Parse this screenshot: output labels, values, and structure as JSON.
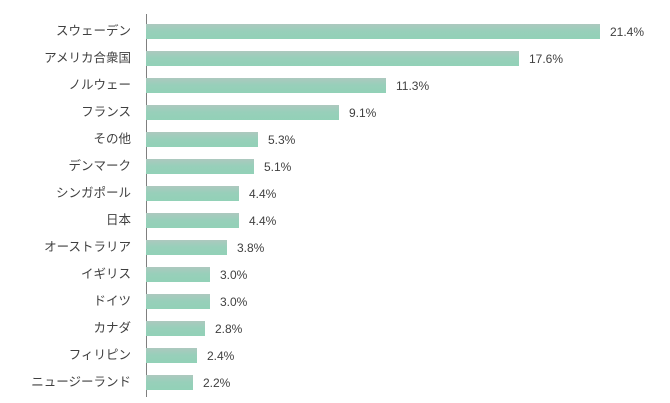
{
  "chart_data": {
    "type": "bar",
    "orientation": "horizontal",
    "title": "",
    "xlabel": "",
    "ylabel": "",
    "categories": [
      "スウェーデン",
      "アメリカ合衆国",
      "ノルウェー",
      "フランス",
      "その他",
      "デンマーク",
      "シンガポール",
      "日本",
      "オーストラリア",
      "イギリス",
      "ドイツ",
      "カナダ",
      "フィリピン",
      "ニュージーランド"
    ],
    "values": [
      21.4,
      17.6,
      11.3,
      9.1,
      5.3,
      5.1,
      4.4,
      4.4,
      3.8,
      3.0,
      3.0,
      2.8,
      2.4,
      2.2
    ],
    "value_labels": [
      "21.4%",
      "17.6%",
      "11.3%",
      "9.1%",
      "5.3%",
      "5.1%",
      "4.4%",
      "4.4%",
      "3.8%",
      "3.0%",
      "3.0%",
      "2.8%",
      "2.4%",
      "2.2%"
    ],
    "xlim": [
      0,
      24.7
    ],
    "grid": false,
    "legend": false,
    "data_labels": true
  },
  "style": {
    "bar_color": "#98cfba",
    "bar_gradient_top": "#adc8bf",
    "bar_gradient_bottom": "#92d1b7",
    "axis_line_color": "#7f7f7f",
    "text_color": "#404040",
    "background_color": "#ffffff"
  }
}
